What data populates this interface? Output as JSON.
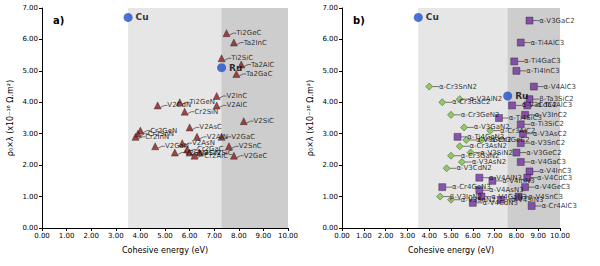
{
  "chart_data": [
    {
      "type": "scatter",
      "title": "a)",
      "x_label": "Cohesive energy (eV)",
      "y_label": "ρ₀×λ (x10⁻¹⁶ Ω.m²)",
      "xlim": [
        0,
        10
      ],
      "ylim": [
        0,
        7
      ],
      "xticks": [
        {
          "value": 0,
          "label": "0.00"
        },
        {
          "value": 1,
          "label": "1.00"
        },
        {
          "value": 2,
          "label": "2.00"
        },
        {
          "value": 3,
          "label": "3.00"
        },
        {
          "value": 4,
          "label": "4.00"
        },
        {
          "value": 5,
          "label": "5.00"
        },
        {
          "value": 6,
          "label": "6.00"
        },
        {
          "value": 7,
          "label": "7.00"
        },
        {
          "value": 8,
          "label": "8.00"
        },
        {
          "value": 9,
          "label": "9.00"
        },
        {
          "value": 10,
          "label": "10.00"
        }
      ],
      "yticks": [
        {
          "value": 0,
          "label": "0.00"
        },
        {
          "value": 1,
          "label": "1.00"
        },
        {
          "value": 2,
          "label": "2.00"
        },
        {
          "value": 3,
          "label": "3.00"
        },
        {
          "value": 4,
          "label": "4.00"
        },
        {
          "value": 5,
          "label": "5.00"
        },
        {
          "value": 6,
          "label": "6.00"
        },
        {
          "value": 7,
          "label": "7.00"
        }
      ],
      "grid": false,
      "references": [
        {
          "label": "Cu",
          "x": 3.5,
          "y": 6.7,
          "color": "#1f4fc9"
        },
        {
          "label": "Ru",
          "x": 7.3,
          "y": 5.1,
          "color": "#1f4fc9"
        }
      ],
      "series": [
        {
          "color": "#8b1a1a",
          "marker": "triangle",
          "points": [
            {
              "label": "Ti2GeC",
              "x": 7.5,
              "y": 6.2
            },
            {
              "label": "Ta2InC",
              "x": 7.8,
              "y": 5.9
            },
            {
              "label": "Ti2SiC",
              "x": 7.3,
              "y": 5.4
            },
            {
              "label": "Ta2AlC",
              "x": 8.1,
              "y": 5.2
            },
            {
              "label": "Ta2GaC",
              "x": 7.9,
              "y": 4.9
            },
            {
              "label": "Ti2GeN",
              "x": 5.6,
              "y": 4.0
            },
            {
              "label": "V2CdN",
              "x": 4.7,
              "y": 3.9
            },
            {
              "label": "Cr2SiN",
              "x": 5.8,
              "y": 3.7
            },
            {
              "label": "V2InC",
              "x": 7.1,
              "y": 4.2
            },
            {
              "label": "V2AlC",
              "x": 7.1,
              "y": 3.9
            },
            {
              "label": "V2SiC",
              "x": 8.2,
              "y": 3.4
            },
            {
              "label": "Cr2GeN",
              "x": 4.0,
              "y": 3.1
            },
            {
              "label": "Cr2SnN",
              "x": 3.9,
              "y": 3.0
            },
            {
              "label": "Cr2InN",
              "x": 3.8,
              "y": 2.9
            },
            {
              "label": "V2AsC",
              "x": 6.0,
              "y": 3.2
            },
            {
              "label": "V2AlN",
              "x": 6.3,
              "y": 2.9
            },
            {
              "label": "V2AsN",
              "x": 5.7,
              "y": 2.7
            },
            {
              "label": "V2GaC",
              "x": 7.3,
              "y": 2.9
            },
            {
              "label": "V2GeC",
              "x": 7.8,
              "y": 2.3
            },
            {
              "label": "V2SnC",
              "x": 7.6,
              "y": 2.6
            },
            {
              "label": "V2GaN",
              "x": 4.6,
              "y": 2.6
            },
            {
              "label": "V2SnN",
              "x": 5.4,
              "y": 2.4
            },
            {
              "label": "V2SiN",
              "x": 6.0,
              "y": 2.4
            },
            {
              "label": "Cr2SiC",
              "x": 6.4,
              "y": 2.4
            },
            {
              "label": "Cr2AlC",
              "x": 6.2,
              "y": 2.3
            },
            {
              "label": "Cr2GaC",
              "x": 5.9,
              "y": 2.5
            }
          ]
        }
      ]
    },
    {
      "type": "scatter",
      "title": "b)",
      "x_label": "Cohesive energy (eV)",
      "y_label": "ρ₀×λ (x10⁻¹⁶ Ω.m²)",
      "xlim": [
        0,
        10
      ],
      "ylim": [
        0,
        7
      ],
      "xticks": [
        {
          "value": 0,
          "label": "0.00"
        },
        {
          "value": 1,
          "label": "1.00"
        },
        {
          "value": 2,
          "label": "2.00"
        },
        {
          "value": 3,
          "label": "3.00"
        },
        {
          "value": 4,
          "label": "4.00"
        },
        {
          "value": 5,
          "label": "5.00"
        },
        {
          "value": 6,
          "label": "6.00"
        },
        {
          "value": 7,
          "label": "7.00"
        },
        {
          "value": 8,
          "label": "8.00"
        },
        {
          "value": 9,
          "label": "9.00"
        },
        {
          "value": 10,
          "label": "10.00"
        }
      ],
      "yticks": [
        {
          "value": 0,
          "label": "0.00"
        },
        {
          "value": 1,
          "label": "1.00"
        },
        {
          "value": 2,
          "label": "2.00"
        },
        {
          "value": 3,
          "label": "3.00"
        },
        {
          "value": 4,
          "label": "4.00"
        },
        {
          "value": 5,
          "label": "5.00"
        },
        {
          "value": 6,
          "label": "6.00"
        },
        {
          "value": 7,
          "label": "7.00"
        }
      ],
      "grid": false,
      "references": [
        {
          "label": "Cu",
          "x": 3.5,
          "y": 6.7,
          "color": "#1f4fc9"
        },
        {
          "label": "Ru",
          "x": 7.6,
          "y": 4.2,
          "color": "#1f4fc9"
        }
      ],
      "series": [
        {
          "color": "#7cc242",
          "marker": "diamond",
          "points": [
            {
              "label": "α-Cr3SnN2",
              "x": 4.0,
              "y": 4.5
            },
            {
              "label": "α-V3AlN2",
              "x": 5.4,
              "y": 4.1
            },
            {
              "label": "α-Cr3GaC2",
              "x": 4.6,
              "y": 4.0
            },
            {
              "label": "α-Cr3GeN2",
              "x": 5.0,
              "y": 3.6
            },
            {
              "label": "α-Cr3AlC2",
              "x": 6.8,
              "y": 3.1
            },
            {
              "label": "α-V3GaN2",
              "x": 5.6,
              "y": 3.2
            },
            {
              "label": "α-Cr3GeC2",
              "x": 6.4,
              "y": 2.8
            },
            {
              "label": "α-V3GeN2",
              "x": 5.7,
              "y": 2.8
            },
            {
              "label": "α-Cr3AsN2",
              "x": 5.4,
              "y": 2.6
            },
            {
              "label": "α-V3SiN2",
              "x": 5.9,
              "y": 2.4
            },
            {
              "label": "α-Cr3GaN2",
              "x": 5.0,
              "y": 2.3
            },
            {
              "label": "α-V3AsN2",
              "x": 5.5,
              "y": 2.1
            },
            {
              "label": "α-V3CdN2",
              "x": 4.8,
              "y": 1.9
            },
            {
              "label": "β-V3InN2",
              "x": 4.5,
              "y": 1.0
            },
            {
              "label": "α-V3SnN2",
              "x": 5.0,
              "y": 0.9
            }
          ]
        },
        {
          "color": "#7030a0",
          "marker": "rect",
          "points": [
            {
              "label": "α-V3GaC2",
              "x": 8.6,
              "y": 6.6
            },
            {
              "label": "α-Ti4AlC3",
              "x": 8.2,
              "y": 5.9
            },
            {
              "label": "α-Ti4GaC3",
              "x": 7.9,
              "y": 5.3
            },
            {
              "label": "α-Ti4InC3",
              "x": 8.0,
              "y": 5.0
            },
            {
              "label": "α-V4AlC3",
              "x": 8.8,
              "y": 4.5
            },
            {
              "label": "β-Ta3SiC2",
              "x": 8.6,
              "y": 4.1
            },
            {
              "label": "α-V3CdC2",
              "x": 7.8,
              "y": 3.9
            },
            {
              "label": "α-Ta4AlC3",
              "x": 8.5,
              "y": 3.9
            },
            {
              "label": "α-V3InC2",
              "x": 8.4,
              "y": 3.6
            },
            {
              "label": "α-Ti4SiC3",
              "x": 7.2,
              "y": 3.5
            },
            {
              "label": "α-Ti3SiC2",
              "x": 8.2,
              "y": 3.3
            },
            {
              "label": "α-V3AsC2",
              "x": 8.3,
              "y": 3.0
            },
            {
              "label": "α-Ti4GeN3",
              "x": 5.3,
              "y": 2.9
            },
            {
              "label": "α-V3SnC2",
              "x": 8.2,
              "y": 2.7
            },
            {
              "label": "α-V3GeC2",
              "x": 8.0,
              "y": 2.4
            },
            {
              "label": "α-V4GaC3",
              "x": 8.2,
              "y": 2.1
            },
            {
              "label": "α-V4InC3",
              "x": 8.6,
              "y": 1.8
            },
            {
              "label": "α-V4CdC3",
              "x": 8.5,
              "y": 1.6
            },
            {
              "label": "α-V4AlN3",
              "x": 6.3,
              "y": 1.6
            },
            {
              "label": "α-V4InN3",
              "x": 6.9,
              "y": 1.5
            },
            {
              "label": "α-Cr4GeN3",
              "x": 4.6,
              "y": 1.3
            },
            {
              "label": "α-V4GeC3",
              "x": 8.4,
              "y": 1.3
            },
            {
              "label": "α-V4AsN3",
              "x": 6.3,
              "y": 1.2
            },
            {
              "label": "α-V4GaN3",
              "x": 6.4,
              "y": 1.0
            },
            {
              "label": "α-V4SnC3",
              "x": 8.1,
              "y": 1.0
            },
            {
              "label": "α-V4CdN3",
              "x": 6.0,
              "y": 0.8
            },
            {
              "label": "α-V4SiN3",
              "x": 7.3,
              "y": 0.9
            },
            {
              "label": "α-Cr4AlC3",
              "x": 8.7,
              "y": 0.7
            }
          ]
        }
      ]
    }
  ]
}
